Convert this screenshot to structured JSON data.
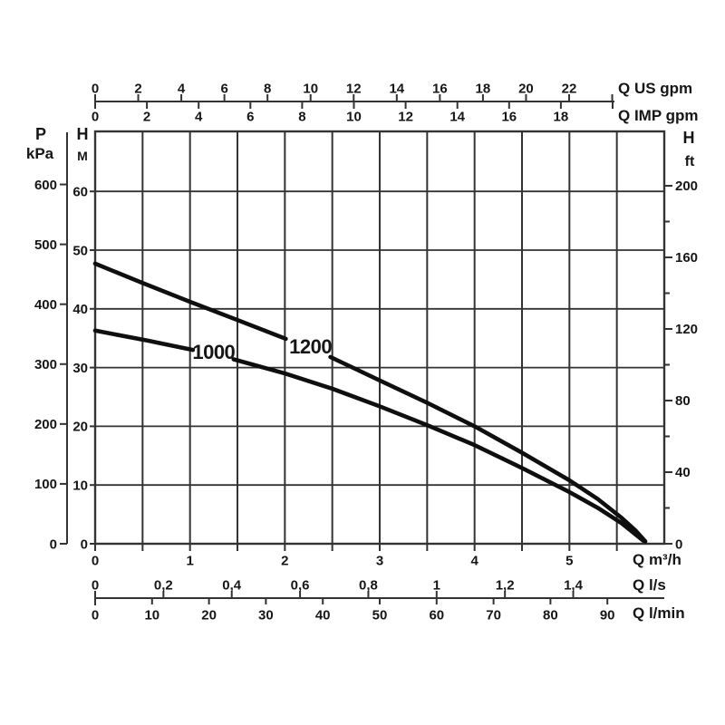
{
  "colors": {
    "ink": "#161616",
    "grid": "#333333",
    "curve": "#0f0f0f",
    "background": "#ffffff"
  },
  "chart_data": {
    "type": "line",
    "title": "",
    "grid": "on",
    "axes": {
      "us_gpm": {
        "label": "Q US gpm",
        "ticks": [
          0,
          2,
          4,
          6,
          8,
          10,
          12,
          14,
          16,
          18,
          20,
          22,
          24
        ],
        "labeled": [
          0,
          2,
          4,
          6,
          8,
          10,
          12,
          14,
          16,
          18,
          20,
          22
        ]
      },
      "imp_gpm": {
        "label": "Q IMP gpm",
        "ticks": [
          0,
          2,
          4,
          6,
          8,
          10,
          12,
          14,
          16,
          18,
          20
        ],
        "labeled": [
          0,
          2,
          4,
          6,
          8,
          10,
          12,
          14,
          16,
          18
        ]
      },
      "m3h": {
        "label": "Q m³/h",
        "tick_step": 0.5,
        "max": 6,
        "labeled": [
          0,
          1,
          2,
          3,
          4,
          5
        ]
      },
      "ls": {
        "label": "Q l/s",
        "tick_labels": [
          "0",
          "0,2",
          "0,4",
          "0,6",
          "0,8",
          "1",
          "1,2",
          "1,4"
        ]
      },
      "lmin": {
        "label": "Q l/min",
        "tick_labels": [
          "0",
          "10",
          "20",
          "30",
          "40",
          "50",
          "60",
          "70",
          "80",
          "90"
        ]
      },
      "pressure": {
        "name": "P",
        "unit": "kPa",
        "ticks": [
          0,
          100,
          200,
          300,
          400,
          500,
          600
        ]
      },
      "head_m": {
        "name": "H",
        "unit": "M",
        "ticks": [
          0,
          10,
          20,
          30,
          40,
          50,
          60
        ]
      },
      "head_ft": {
        "name": "H",
        "unit": "ft",
        "major_ticks": [
          0,
          40,
          80,
          120,
          160,
          200
        ],
        "minor_ticks": [
          20,
          60,
          100,
          140,
          180
        ]
      }
    },
    "series": [
      {
        "name": "1200",
        "label_pos": {
          "q": 2.27,
          "h": 33.6
        },
        "segments": [
          [
            [
              0,
              47.7
            ],
            [
              0.5,
              44.4
            ],
            [
              1.0,
              41.2
            ],
            [
              1.5,
              38.1
            ],
            [
              2.01,
              34.9
            ]
          ],
          [
            [
              2.48,
              31.8
            ],
            [
              3.0,
              27.8
            ],
            [
              3.5,
              24.0
            ],
            [
              4.0,
              20.0
            ],
            [
              4.5,
              15.5
            ],
            [
              5.0,
              10.8
            ],
            [
              5.3,
              7.6
            ],
            [
              5.55,
              4.4
            ],
            [
              5.7,
              2.2
            ],
            [
              5.8,
              0.4
            ]
          ]
        ]
      },
      {
        "name": "1000",
        "label_pos": {
          "q": 1.25,
          "h": 32.7
        },
        "segments": [
          [
            [
              0,
              36.3
            ],
            [
              0.55,
              34.6
            ],
            [
              1.03,
              33.0
            ]
          ],
          [
            [
              1.46,
              31.4
            ],
            [
              2.0,
              29.0
            ],
            [
              2.5,
              26.4
            ],
            [
              3.0,
              23.4
            ],
            [
              3.5,
              20.2
            ],
            [
              4.0,
              16.8
            ],
            [
              4.5,
              12.9
            ],
            [
              5.0,
              8.8
            ],
            [
              5.3,
              6.1
            ],
            [
              5.55,
              3.5
            ],
            [
              5.78,
              0.5
            ]
          ]
        ]
      }
    ]
  }
}
